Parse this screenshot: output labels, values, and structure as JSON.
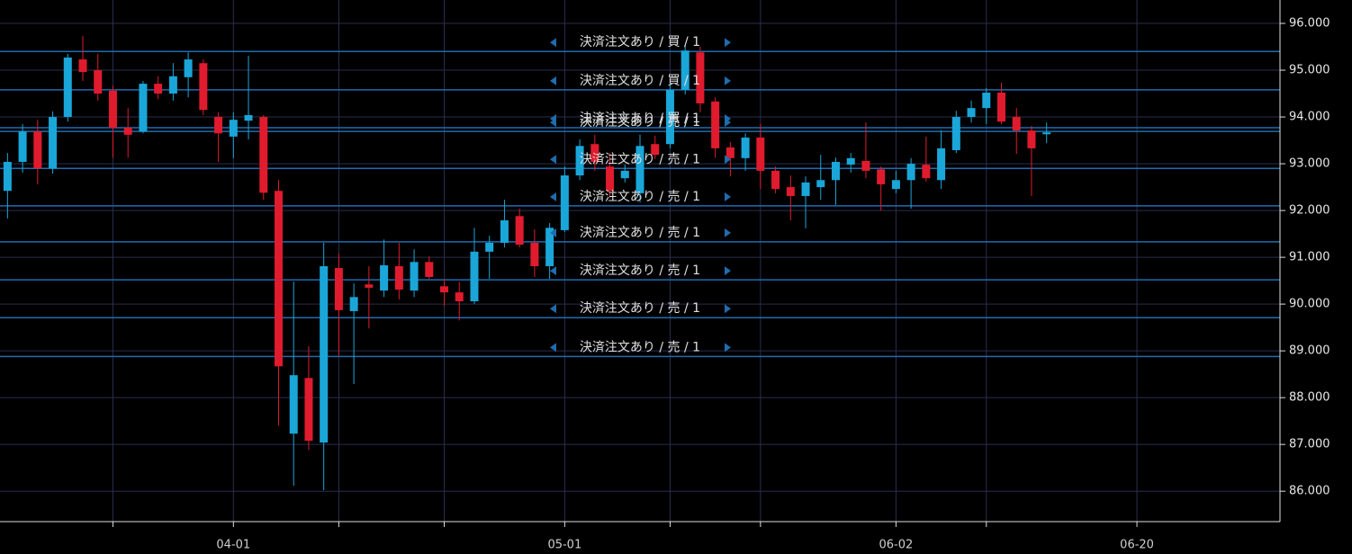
{
  "chart_data": {
    "type": "candlestick",
    "categories": [
      null,
      null,
      null,
      null,
      null,
      null,
      null,
      null,
      null,
      null,
      null,
      null,
      null,
      null,
      null,
      "04-01",
      null,
      null,
      null,
      null,
      null,
      null,
      null,
      null,
      null,
      null,
      null,
      null,
      null,
      null,
      null,
      null,
      null,
      null,
      null,
      null,
      null,
      "05-01",
      null,
      null,
      null,
      null,
      null,
      null,
      null,
      null,
      null,
      null,
      null,
      null,
      null,
      null,
      null,
      null,
      null,
      null,
      null,
      null,
      null,
      "06-02",
      null,
      null,
      null,
      null,
      null,
      null,
      null,
      null,
      null,
      null,
      null,
      null,
      null,
      null,
      null,
      "06-20",
      null,
      null,
      null,
      null,
      null,
      null,
      null,
      null,
      null
    ],
    "open": [
      92.42,
      93.04,
      93.69,
      92.9,
      94.0,
      95.23,
      95.0,
      94.56,
      93.77,
      93.69,
      94.71,
      94.5,
      94.85,
      95.15,
      94.0,
      93.58,
      93.92,
      94.0,
      92.42,
      87.23,
      88.42,
      87.04,
      90.77,
      89.85,
      90.42,
      90.29,
      90.81,
      90.29,
      90.9,
      90.38,
      90.25,
      90.06,
      91.12,
      91.31,
      91.88,
      91.31,
      90.81,
      91.58,
      92.75,
      93.42,
      92.94,
      92.69,
      92.37,
      93.42,
      93.42,
      94.58,
      95.38,
      94.33,
      93.35,
      93.12,
      93.56,
      92.85,
      92.5,
      92.31,
      92.5,
      92.65,
      92.98,
      93.06,
      92.88,
      92.46,
      92.65,
      92.98,
      92.65,
      93.29,
      94.0,
      94.19,
      94.52,
      94.0,
      93.71,
      93.63,
      null,
      null,
      null,
      null,
      null,
      null,
      null,
      null,
      null,
      null,
      null,
      null,
      null,
      null,
      null
    ],
    "high": [
      93.23,
      93.85,
      93.94,
      94.12,
      95.35,
      95.73,
      95.35,
      94.67,
      94.19,
      94.77,
      94.87,
      95.15,
      95.38,
      95.23,
      94.1,
      94.1,
      95.31,
      94.04,
      92.65,
      90.48,
      89.1,
      91.31,
      91.08,
      90.44,
      90.81,
      91.38,
      91.31,
      91.17,
      91.02,
      90.54,
      90.48,
      91.63,
      91.46,
      92.23,
      92.04,
      91.6,
      91.73,
      92.94,
      93.52,
      93.62,
      93.23,
      92.98,
      93.62,
      93.6,
      94.81,
      95.54,
      95.5,
      94.42,
      93.46,
      93.65,
      93.85,
      92.94,
      92.75,
      92.73,
      93.19,
      93.13,
      93.23,
      93.88,
      92.94,
      92.85,
      93.12,
      93.58,
      93.71,
      94.13,
      94.35,
      94.62,
      94.73,
      94.19,
      93.81,
      93.88,
      null,
      null,
      null,
      null,
      null,
      null,
      null,
      null,
      null,
      null,
      null,
      null,
      null,
      null,
      null
    ],
    "low": [
      91.83,
      92.81,
      92.56,
      92.79,
      93.9,
      94.77,
      94.35,
      93.13,
      93.13,
      93.65,
      94.38,
      94.35,
      94.42,
      94.04,
      93.04,
      93.12,
      93.52,
      92.23,
      87.4,
      86.12,
      86.88,
      86.02,
      88.9,
      88.29,
      89.48,
      90.15,
      90.1,
      90.15,
      90.54,
      89.96,
      89.65,
      90.0,
      90.54,
      91.21,
      91.21,
      90.58,
      90.54,
      91.54,
      92.65,
      92.85,
      92.27,
      92.6,
      92.17,
      93.1,
      93.33,
      94.48,
      94.1,
      93.13,
      92.73,
      92.85,
      92.46,
      92.37,
      91.79,
      91.62,
      92.23,
      92.12,
      92.81,
      92.69,
      92.0,
      92.37,
      92.04,
      92.62,
      92.46,
      93.23,
      93.88,
      93.85,
      93.85,
      93.21,
      92.31,
      93.44,
      null,
      null,
      null,
      null,
      null,
      null,
      null,
      null,
      null,
      null,
      null,
      null,
      null,
      null,
      null
    ],
    "close": [
      93.04,
      93.69,
      92.9,
      94.0,
      95.27,
      94.96,
      94.5,
      93.77,
      93.62,
      94.71,
      94.5,
      94.87,
      95.23,
      94.15,
      93.65,
      93.94,
      94.04,
      92.38,
      88.67,
      88.48,
      87.08,
      90.81,
      89.87,
      90.15,
      90.35,
      90.83,
      90.31,
      90.9,
      90.58,
      90.25,
      90.06,
      91.12,
      91.31,
      91.79,
      91.27,
      90.81,
      91.63,
      92.75,
      93.38,
      93.04,
      92.42,
      92.85,
      93.38,
      93.19,
      94.58,
      95.42,
      94.29,
      93.33,
      93.12,
      93.56,
      92.85,
      92.46,
      92.31,
      92.6,
      92.65,
      93.04,
      93.12,
      92.85,
      92.56,
      92.65,
      93.0,
      92.69,
      93.33,
      94.0,
      94.19,
      94.52,
      93.9,
      93.71,
      93.33,
      93.67,
      null,
      null,
      null,
      null,
      null,
      null,
      null,
      null,
      null,
      null,
      null,
      null,
      null,
      null,
      null
    ],
    "up_color": "#1aa6d8",
    "down_color": "#e01b2e",
    "ylim": [
      85.35,
      96.5
    ],
    "yticks": [
      {
        "value": 86,
        "label": "86.000"
      },
      {
        "value": 87,
        "label": "87.000"
      },
      {
        "value": 88,
        "label": "88.000"
      },
      {
        "value": 89,
        "label": "89.000"
      },
      {
        "value": 90,
        "label": "90.000"
      },
      {
        "value": 91,
        "label": "91.000"
      },
      {
        "value": 92,
        "label": "92.000"
      },
      {
        "value": 93,
        "label": "93.000"
      },
      {
        "value": 94,
        "label": "94.000"
      },
      {
        "value": 95,
        "label": "95.000"
      },
      {
        "value": 96,
        "label": "96.000"
      }
    ],
    "x_gridlines": [
      7,
      15,
      22,
      29,
      37,
      44,
      50,
      59,
      65,
      75
    ],
    "grid": true,
    "grid_color": "#2a2e4e",
    "order_color": "#1f6cae",
    "orders": [
      {
        "price": 95.4,
        "label": "決済注文あり / 買 / 1"
      },
      {
        "price": 94.58,
        "label": "決済注文あり / 買 / 1"
      },
      {
        "price": 93.77,
        "label": "決済注文あり / 買 / 1"
      },
      {
        "price": 93.69,
        "label": "決済注文あり / 売 / 1"
      },
      {
        "price": 92.9,
        "label": "決済注文あり / 売 / 1"
      },
      {
        "price": 92.1,
        "label": "決済注文あり / 売 / 1"
      },
      {
        "price": 91.33,
        "label": "決済注文あり / 売 / 1"
      },
      {
        "price": 90.52,
        "label": "決済注文あり / 売 / 1"
      },
      {
        "price": 89.71,
        "label": "決済注文あり / 売 / 1"
      },
      {
        "price": 88.88,
        "label": "決済注文あり / 売 / 1"
      }
    ]
  }
}
